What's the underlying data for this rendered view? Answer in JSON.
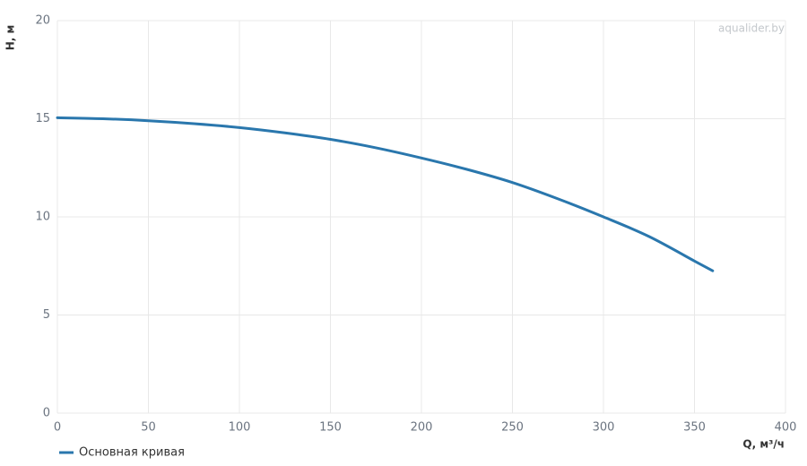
{
  "chart_data": {
    "type": "line",
    "watermark": "aqualider.by",
    "x_label": "Q, м³/ч",
    "y_label": "H, м",
    "xlim": [
      0,
      400
    ],
    "xticks": [
      0,
      50,
      100,
      150,
      200,
      250,
      300,
      350,
      400
    ],
    "ylim": [
      0,
      20
    ],
    "yticks": [
      0,
      5,
      10,
      15,
      20
    ],
    "grid": true,
    "legend": "bottom-left",
    "series": [
      {
        "name": "Основная кривая",
        "color": "#2a77ad",
        "x": [
          0,
          25,
          50,
          75,
          100,
          125,
          150,
          175,
          200,
          225,
          250,
          275,
          300,
          325,
          350,
          360
        ],
        "values": [
          15.05,
          15.0,
          14.9,
          14.75,
          14.55,
          14.28,
          13.95,
          13.52,
          13.0,
          12.42,
          11.75,
          10.92,
          10.0,
          9.0,
          7.75,
          7.25
        ]
      }
    ]
  }
}
